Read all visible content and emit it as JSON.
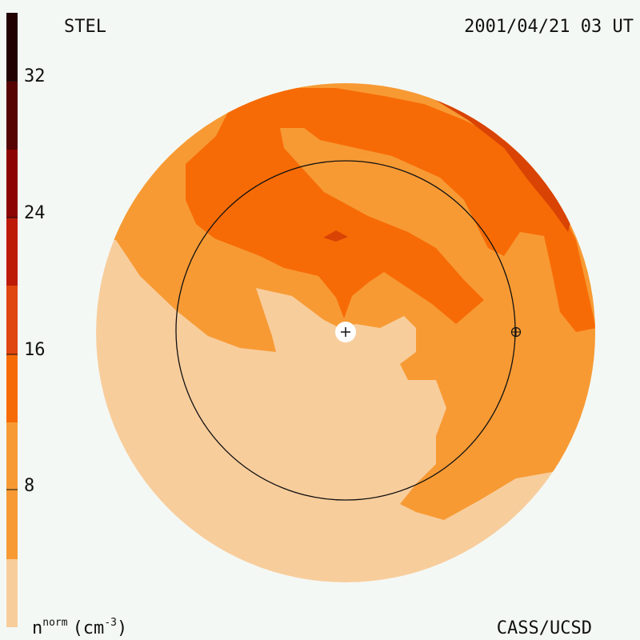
{
  "labels": {
    "source": "STEL",
    "timestamp": "2001/04/21 03 UT",
    "credit": "CASS/UCSD",
    "quantity": "n",
    "quantity_sup": "norm",
    "unit_open": "(cm",
    "unit_sup": "-3",
    "unit_close": ")"
  },
  "colorbar": {
    "ticks": [
      "32",
      "24",
      "16",
      "8"
    ],
    "colors": [
      "#f8cd9c",
      "#f79a34",
      "#f76b06",
      "#df4610",
      "#bd1a08",
      "#8d0404",
      "#550303",
      "#210101"
    ]
  },
  "map_colors": {
    "background": "#f4f8f4",
    "level1": "#f8cd9c",
    "level2": "#f79a34",
    "level3": "#f76b06",
    "level4": "#d94304",
    "outline": "#111111"
  },
  "markers": {
    "center": "plus-marker",
    "earth": "earth-symbol"
  }
}
